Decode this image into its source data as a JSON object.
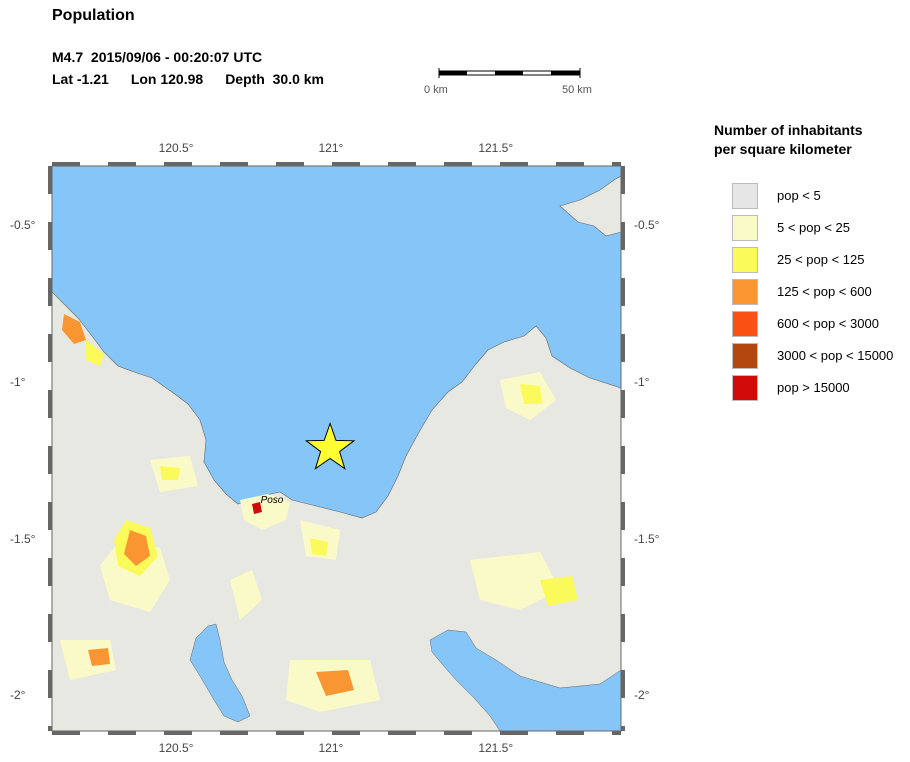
{
  "header": {
    "title": "Population",
    "event": "M4.7  2015/09/06 - 00:20:07 UTC",
    "lat": "Lat -1.21",
    "lon": "Lon 120.98",
    "depth": "Depth  30.0 km"
  },
  "scalebar": {
    "start_label": "0 km",
    "end_label": "50 km"
  },
  "map": {
    "lon_range": [
      120.11,
      121.89
    ],
    "lat_range": [
      -2.11,
      -0.31
    ],
    "x_ticks": [
      "120.5°",
      "121°",
      "121.5°"
    ],
    "y_ticks": [
      "-0.5°",
      "-1°",
      "-1.5°",
      "-2°"
    ],
    "x_tick_values": [
      120.5,
      121.0,
      121.5
    ],
    "y_tick_values": [
      -0.5,
      -1.0,
      -1.5,
      -2.0
    ],
    "epicenter": {
      "lon": 120.98,
      "lat": -1.21
    },
    "city": {
      "name": "Poso",
      "lon": 120.75,
      "lat": -1.39
    },
    "colors": {
      "water": "#85c5f7",
      "land": "#e6e6e0",
      "border": "#555555"
    }
  },
  "legend": {
    "title_line1": "Number of inhabitants",
    "title_line2": "per square kilometer",
    "items": [
      {
        "label": "pop < 5",
        "color": "#e6e6e6"
      },
      {
        "label": "5 < pop < 25",
        "color": "#fafac8"
      },
      {
        "label": "25 < pop < 125",
        "color": "#fafa5a"
      },
      {
        "label": "125 < pop < 600",
        "color": "#fa9632"
      },
      {
        "label": "600 < pop < 3000",
        "color": "#fa5014"
      },
      {
        "label": "3000 < pop < 15000",
        "color": "#b4460f"
      },
      {
        "label": "pop > 15000",
        "color": "#d20a0a"
      }
    ]
  }
}
